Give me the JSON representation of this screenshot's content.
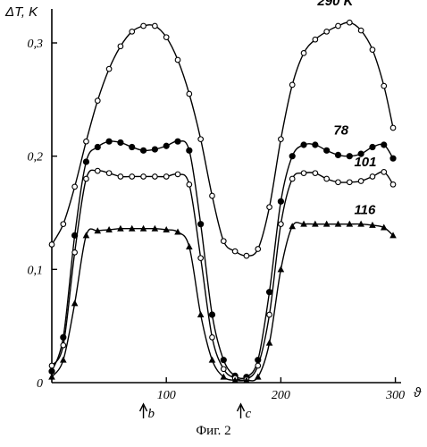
{
  "chart_data": {
    "type": "line",
    "ylabel": "ΔT, K",
    "xlabel": "ϑ",
    "ylim": [
      0,
      0.33
    ],
    "xlim": [
      0,
      305
    ],
    "y_ticks": [
      {
        "value": 0,
        "label": "0"
      },
      {
        "value": 0.1,
        "label": "0,1"
      },
      {
        "value": 0.2,
        "label": "0,2"
      },
      {
        "value": 0.3,
        "label": "0,3"
      }
    ],
    "x_ticks": [
      {
        "value": 100,
        "label": "100"
      },
      {
        "value": 200,
        "label": "200"
      },
      {
        "value": 300,
        "label": "300"
      }
    ],
    "markers": [
      {
        "x": 80,
        "label": "b"
      },
      {
        "x": 165,
        "label": "c"
      }
    ],
    "caption": "Фиг. 2",
    "series": [
      {
        "name": "290 K",
        "marker": "open-circle",
        "x": [
          0,
          10,
          20,
          30,
          40,
          50,
          60,
          70,
          80,
          90,
          100,
          110,
          120,
          130,
          140,
          150,
          160,
          170,
          180,
          190,
          200,
          210,
          220,
          230,
          240,
          250,
          260,
          270,
          280,
          290,
          298
        ],
        "y": [
          0.122,
          0.14,
          0.173,
          0.213,
          0.249,
          0.277,
          0.297,
          0.31,
          0.315,
          0.315,
          0.305,
          0.285,
          0.255,
          0.215,
          0.165,
          0.125,
          0.116,
          0.112,
          0.118,
          0.155,
          0.215,
          0.263,
          0.291,
          0.303,
          0.31,
          0.315,
          0.318,
          0.311,
          0.294,
          0.262,
          0.225
        ],
        "label_pos": {
          "x": 232,
          "y": 0.333
        }
      },
      {
        "name": "78",
        "marker": "filled-circle",
        "x": [
          0,
          10,
          20,
          30,
          40,
          50,
          60,
          70,
          80,
          90,
          100,
          110,
          120,
          130,
          140,
          150,
          160,
          170,
          180,
          190,
          200,
          210,
          220,
          230,
          240,
          250,
          260,
          270,
          280,
          290,
          298
        ],
        "y": [
          0.01,
          0.04,
          0.13,
          0.195,
          0.208,
          0.213,
          0.212,
          0.208,
          0.205,
          0.206,
          0.209,
          0.213,
          0.205,
          0.14,
          0.06,
          0.02,
          0.006,
          0.005,
          0.02,
          0.08,
          0.16,
          0.2,
          0.21,
          0.21,
          0.205,
          0.201,
          0.2,
          0.202,
          0.208,
          0.21,
          0.198
        ],
        "label_pos": {
          "x": 246,
          "y": 0.219
        }
      },
      {
        "name": "101",
        "marker": "open-circle",
        "x": [
          0,
          10,
          20,
          30,
          40,
          50,
          60,
          70,
          80,
          90,
          100,
          110,
          120,
          130,
          140,
          150,
          160,
          170,
          180,
          190,
          200,
          210,
          220,
          230,
          240,
          250,
          260,
          270,
          280,
          290,
          298
        ],
        "y": [
          0.015,
          0.033,
          0.115,
          0.18,
          0.187,
          0.185,
          0.182,
          0.182,
          0.182,
          0.182,
          0.182,
          0.184,
          0.175,
          0.11,
          0.04,
          0.012,
          0.004,
          0.003,
          0.015,
          0.06,
          0.14,
          0.18,
          0.185,
          0.185,
          0.18,
          0.177,
          0.177,
          0.178,
          0.182,
          0.186,
          0.175
        ],
        "label_pos": {
          "x": 264,
          "y": 0.191
        }
      },
      {
        "name": "116",
        "marker": "filled-triangle",
        "x": [
          0,
          10,
          20,
          30,
          40,
          50,
          60,
          70,
          80,
          90,
          100,
          110,
          120,
          130,
          140,
          150,
          160,
          170,
          180,
          190,
          200,
          210,
          220,
          230,
          240,
          250,
          260,
          270,
          280,
          290,
          298
        ],
        "y": [
          0.005,
          0.02,
          0.07,
          0.13,
          0.134,
          0.135,
          0.136,
          0.136,
          0.136,
          0.136,
          0.135,
          0.133,
          0.12,
          0.06,
          0.02,
          0.005,
          0.002,
          0.002,
          0.005,
          0.035,
          0.1,
          0.138,
          0.14,
          0.14,
          0.14,
          0.14,
          0.14,
          0.14,
          0.139,
          0.137,
          0.13
        ],
        "label_pos": {
          "x": 264,
          "y": 0.149
        }
      }
    ]
  }
}
